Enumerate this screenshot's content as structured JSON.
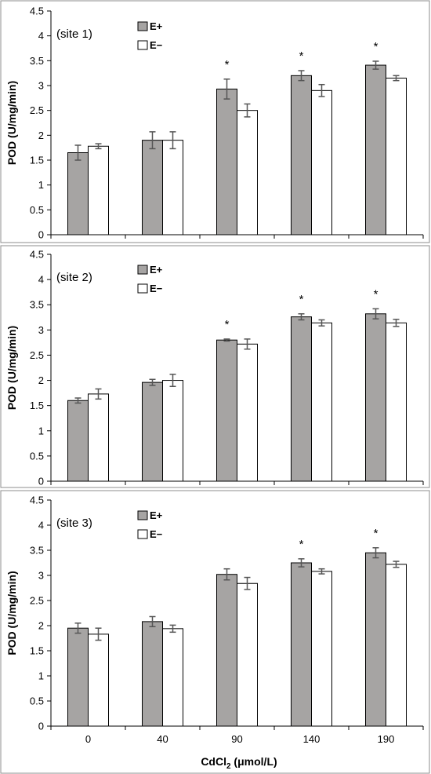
{
  "colors": {
    "e_plus": "#a6a4a3",
    "e_minus": "#ffffff",
    "stroke": "#000000",
    "error": "#555555",
    "frame": "#8c8c8c"
  },
  "chart_data": [
    {
      "type": "bar",
      "site_label": "(site 1)",
      "ylabel": "POD (U/mg/min)",
      "ylim": [
        0,
        4.5
      ],
      "yticks": [
        "0",
        "0.5",
        "1",
        "1.5",
        "2",
        "2.5",
        "3",
        "3.5",
        "4",
        "4.5"
      ],
      "categories": [
        "0",
        "40",
        "90",
        "140",
        "190"
      ],
      "series": [
        {
          "name": "E+",
          "values": [
            1.65,
            1.9,
            2.93,
            3.2,
            3.41
          ],
          "errors": [
            0.15,
            0.17,
            0.2,
            0.1,
            0.08
          ]
        },
        {
          "name": "E−",
          "values": [
            1.78,
            1.9,
            2.5,
            2.9,
            3.15
          ],
          "errors": [
            0.05,
            0.17,
            0.13,
            0.12,
            0.05
          ]
        }
      ],
      "significance": [
        "",
        "",
        "*",
        "*",
        "*"
      ]
    },
    {
      "type": "bar",
      "site_label": "(site 2)",
      "ylabel": "POD (U/mg/min)",
      "ylim": [
        0,
        4.5
      ],
      "yticks": [
        "0",
        "0.5",
        "1",
        "1.5",
        "2",
        "2.5",
        "3",
        "3.5",
        "4",
        "4.5"
      ],
      "categories": [
        "0",
        "40",
        "90",
        "140",
        "190"
      ],
      "series": [
        {
          "name": "E+",
          "values": [
            1.6,
            1.96,
            2.8,
            3.26,
            3.32
          ],
          "errors": [
            0.05,
            0.06,
            0.02,
            0.06,
            0.1
          ]
        },
        {
          "name": "E−",
          "values": [
            1.73,
            2.0,
            2.72,
            3.14,
            3.14
          ],
          "errors": [
            0.1,
            0.12,
            0.1,
            0.06,
            0.07
          ]
        }
      ],
      "significance": [
        "",
        "",
        "*",
        "*",
        "*"
      ]
    },
    {
      "type": "bar",
      "site_label": "(site 3)",
      "ylabel": "POD (U/mg/min)",
      "xlabel_main": "CdCl",
      "xlabel_sub": "2",
      "xlabel_rest": " (μmol/L)",
      "ylim": [
        0,
        4.5
      ],
      "yticks": [
        "0",
        "0.5",
        "1",
        "1.5",
        "2",
        "2.5",
        "3",
        "3.5",
        "4",
        "4.5"
      ],
      "categories": [
        "0",
        "40",
        "90",
        "140",
        "190"
      ],
      "series": [
        {
          "name": "E+",
          "values": [
            1.95,
            2.08,
            3.02,
            3.25,
            3.45
          ],
          "errors": [
            0.1,
            0.1,
            0.11,
            0.08,
            0.1
          ]
        },
        {
          "name": "E−",
          "values": [
            1.83,
            1.94,
            2.84,
            3.08,
            3.22
          ],
          "errors": [
            0.12,
            0.07,
            0.12,
            0.05,
            0.06
          ]
        }
      ],
      "significance": [
        "",
        "",
        "",
        "*",
        "*"
      ]
    }
  ]
}
